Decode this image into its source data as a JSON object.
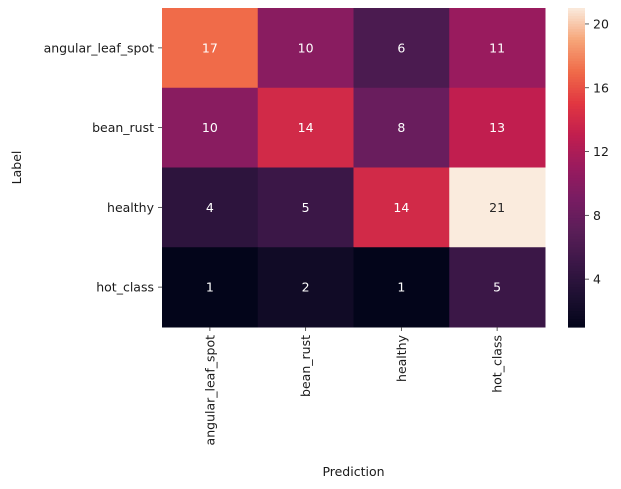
{
  "chart_data": {
    "type": "heatmap",
    "title": "",
    "xlabel": "Prediction",
    "ylabel": "Label",
    "x_categories": [
      "angular_leaf_spot",
      "bean_rust",
      "healthy",
      "hot_class"
    ],
    "y_categories": [
      "angular_leaf_spot",
      "bean_rust",
      "healthy",
      "hot_class"
    ],
    "values": [
      [
        17,
        10,
        6,
        11
      ],
      [
        10,
        14,
        8,
        13
      ],
      [
        4,
        5,
        14,
        21
      ],
      [
        1,
        2,
        1,
        5
      ]
    ],
    "colorbar": {
      "range": [
        1,
        21
      ],
      "ticks": [
        4,
        8,
        12,
        16,
        20
      ],
      "colormap": "rocket"
    },
    "grid": false
  }
}
